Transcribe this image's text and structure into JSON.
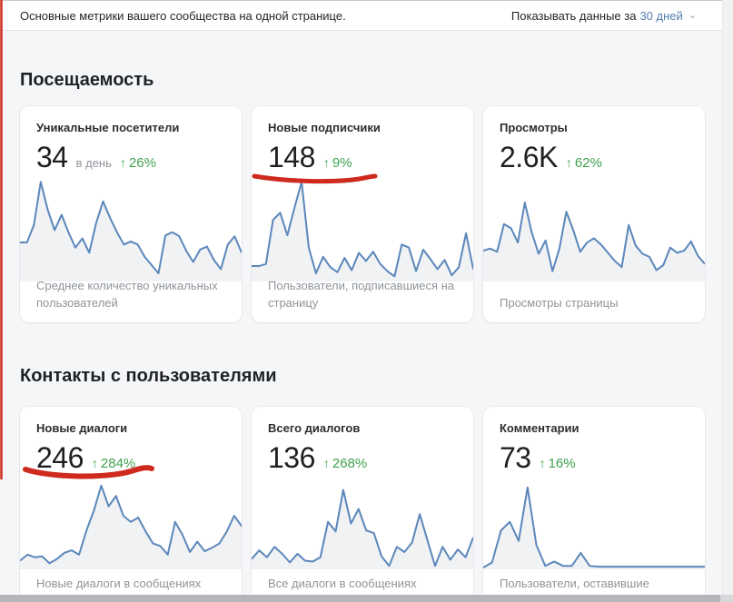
{
  "topbar": {
    "subtitle": "Основные метрики вашего сообщества на одной странице.",
    "period_label": "Показывать данные за",
    "period_value": "30 дней",
    "chevron_glyph": "⌄"
  },
  "icons": {
    "up_arrow": "↑"
  },
  "colors": {
    "chart_line": "#5b87bb",
    "chart_fill": "#f1f2f4",
    "positive_green": "#3fa24f",
    "link_blue": "#547fae",
    "annotation_red": "#cf2a1e"
  },
  "annotations": {
    "color": "#cf2a1e"
  },
  "sections": [
    {
      "title": "Посещаемость",
      "cards": [
        {
          "title": "Уникальные посетители",
          "value": "34",
          "suffix": "в день",
          "delta": "26%",
          "caption": "Среднее количество уникальных пользователей",
          "chart": [
            38,
            38,
            55,
            97,
            70,
            50,
            65,
            48,
            33,
            42,
            28,
            57,
            78,
            62,
            48,
            36,
            39,
            36,
            24,
            16,
            8,
            45,
            48,
            44,
            30,
            19,
            31,
            34,
            21,
            12,
            36,
            44,
            28
          ]
        },
        {
          "title": "Новые подписчики",
          "value": "148",
          "suffix": "",
          "delta": "9%",
          "caption": "Пользователи, подписавшиеся на страницу",
          "chart": [
            15,
            15,
            17,
            60,
            67,
            45,
            72,
            97,
            33,
            8,
            24,
            14,
            9,
            23,
            11,
            28,
            20,
            29,
            17,
            10,
            5,
            36,
            33,
            10,
            31,
            22,
            12,
            21,
            6,
            14,
            47,
            12
          ]
        },
        {
          "title": "Просмотры",
          "value": "2.6K",
          "suffix": "",
          "delta": "62%",
          "caption": "Просмотры страницы",
          "chart": [
            30,
            32,
            29,
            56,
            52,
            38,
            77,
            48,
            27,
            40,
            10,
            32,
            68,
            50,
            29,
            38,
            42,
            36,
            28,
            20,
            14,
            55,
            35,
            27,
            24,
            11,
            16,
            33,
            28,
            30,
            39,
            25,
            17
          ]
        }
      ]
    },
    {
      "title": "Контакты с пользователями",
      "cards": [
        {
          "title": "Новые диалоги",
          "value": "246",
          "suffix": "",
          "delta": "284%",
          "caption": "Новые диалоги в сообщениях",
          "chart": [
            10,
            17,
            14,
            15,
            7,
            12,
            19,
            22,
            17,
            45,
            68,
            97,
            73,
            85,
            62,
            55,
            60,
            44,
            30,
            27,
            17,
            55,
            40,
            20,
            32,
            21,
            25,
            30,
            44,
            62,
            50
          ]
        },
        {
          "title": "Всего диалогов",
          "value": "136",
          "suffix": "",
          "delta": "268%",
          "caption": "Все диалоги в сообщениях",
          "chart": [
            12,
            22,
            14,
            26,
            18,
            8,
            18,
            10,
            9,
            14,
            55,
            44,
            92,
            53,
            70,
            45,
            42,
            15,
            4,
            26,
            20,
            31,
            64,
            34,
            4,
            26,
            11,
            23,
            14,
            37
          ]
        },
        {
          "title": "Комментарии",
          "value": "73",
          "suffix": "",
          "delta": "16%",
          "caption": "Пользователи, оставившие",
          "chart": [
            2,
            8,
            45,
            55,
            33,
            95,
            28,
            4,
            9,
            4,
            4,
            19,
            4,
            3,
            3,
            3,
            3,
            3,
            3,
            3,
            3,
            3,
            3,
            3,
            3,
            3
          ]
        }
      ]
    }
  ]
}
